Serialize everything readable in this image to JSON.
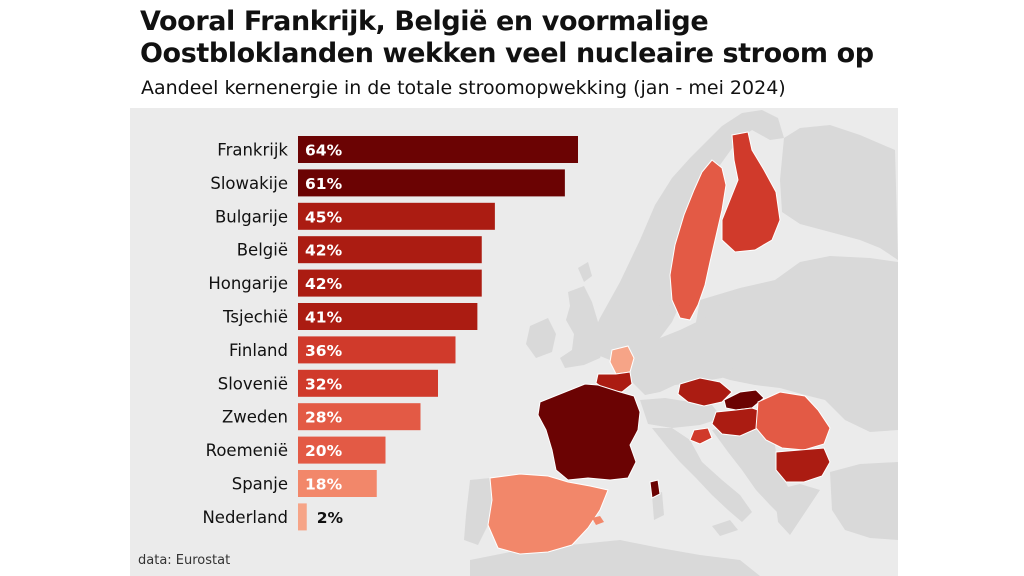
{
  "title": "Vooral Frankrijk, België en voormalige Oostbloklanden wekken veel nucleaire stroom op",
  "subtitle": "Aandeel kernenergie in de totale stroomopwekking (jan - mei 2024)",
  "source": "data: Eurostat",
  "chart_data": {
    "type": "bar",
    "orientation": "horizontal",
    "categories": [
      "Frankrijk",
      "Slowakije",
      "Bulgarije",
      "België",
      "Hongarije",
      "Tsjechië",
      "Finland",
      "Slovenië",
      "Zweden",
      "Roemenië",
      "Spanje",
      "Nederland"
    ],
    "values": [
      64,
      61,
      45,
      42,
      42,
      41,
      36,
      32,
      28,
      20,
      18,
      2
    ],
    "value_labels": [
      "64%",
      "61%",
      "45%",
      "42%",
      "42%",
      "41%",
      "36%",
      "32%",
      "28%",
      "20%",
      "18%",
      "2%"
    ],
    "unit": "%",
    "colors": [
      "#6b0303",
      "#6b0303",
      "#ab1c12",
      "#ab1c12",
      "#ab1c12",
      "#ab1c12",
      "#d03a2b",
      "#d03a2b",
      "#e35a45",
      "#e35a45",
      "#f2876a",
      "#f6a487"
    ],
    "xlim": [
      0,
      64
    ],
    "grid": false,
    "legend": "none"
  },
  "map": {
    "land_color": "#d9d9d9",
    "sea_color": "#ebebeb",
    "border_color": "#ffffff",
    "highlighted_countries": [
      "Frankrijk",
      "Slowakije",
      "Bulgarije",
      "België",
      "Hongarije",
      "Tsjechië",
      "Finland",
      "Slovenië",
      "Zweden",
      "Roemenië",
      "Spanje",
      "Nederland"
    ]
  }
}
